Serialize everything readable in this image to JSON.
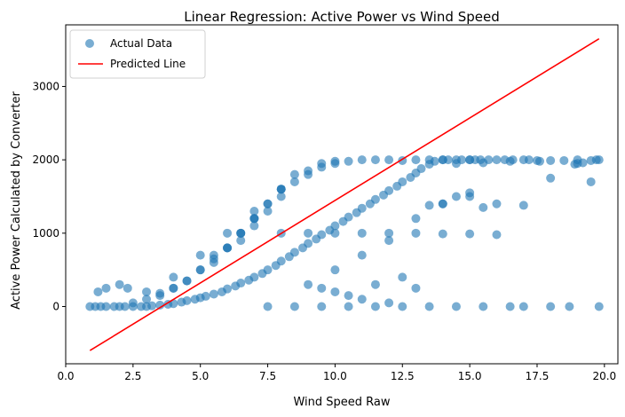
{
  "chart_data": {
    "type": "scatter",
    "title": "Linear Regression: Active Power vs Wind Speed",
    "xlabel": "Wind Speed Raw",
    "ylabel": "Active Power Calculated by Converter",
    "xlim": [
      0.0,
      20.5
    ],
    "ylim": [
      -780,
      3840
    ],
    "xticks": [
      0.0,
      2.5,
      5.0,
      7.5,
      10.0,
      12.5,
      15.0,
      17.5,
      20.0
    ],
    "xtick_labels": [
      "0.0",
      "2.5",
      "5.0",
      "7.5",
      "10.0",
      "12.5",
      "15.0",
      "17.5",
      "20.0"
    ],
    "yticks": [
      0,
      1000,
      2000,
      3000
    ],
    "ytick_labels": [
      "0",
      "1000",
      "2000",
      "3000"
    ],
    "grid": false,
    "legend_position": "top-left",
    "series": [
      {
        "name": "Actual Data",
        "kind": "scatter",
        "color": "#1f77b4",
        "alpha": 0.6,
        "x": [
          0.9,
          1.1,
          1.3,
          1.5,
          1.8,
          2.0,
          2.2,
          2.5,
          2.8,
          3.0,
          3.2,
          3.5,
          3.8,
          4.0,
          4.3,
          4.5,
          4.8,
          5.0,
          5.2,
          5.5,
          5.8,
          6.0,
          6.3,
          6.5,
          6.8,
          7.0,
          7.3,
          7.5,
          7.8,
          8.0,
          8.3,
          8.5,
          8.8,
          9.0,
          9.3,
          9.5,
          9.8,
          10.0,
          10.3,
          10.5,
          10.8,
          11.0,
          11.3,
          11.5,
          11.8,
          12.0,
          12.3,
          12.5,
          12.8,
          13.0,
          13.2,
          13.5,
          13.7,
          14.0,
          14.2,
          14.5,
          14.7,
          15.0,
          15.2,
          15.4,
          15.7,
          16.0,
          16.3,
          16.6,
          17.0,
          17.2,
          17.6,
          18.0,
          18.5,
          18.9,
          19.0,
          19.2,
          19.5,
          19.7,
          19.8,
          3.0,
          4.0,
          5.0,
          6.0,
          7.0,
          8.0,
          9.0,
          10.0,
          11.0,
          12.0,
          13.0,
          14.0,
          15.0,
          9.5,
          10.5,
          11.5,
          12.5,
          13.5,
          14.5,
          15.5,
          16.5,
          17.5,
          19.0,
          8.0,
          9.0,
          10.0,
          11.0,
          12.0,
          13.0,
          14.0,
          15.0,
          16.0,
          7.5,
          8.5,
          9.5,
          10.5,
          11.5,
          12.5,
          13.5,
          14.5,
          15.5,
          16.5,
          17.0,
          18.0,
          18.7,
          19.8,
          6.5,
          7.0,
          7.5,
          8.0,
          8.5,
          9.0,
          9.5,
          10.0,
          6.0,
          6.5,
          7.0,
          7.5,
          8.0,
          8.5,
          5.5,
          6.0,
          6.5,
          7.0,
          7.5,
          8.0,
          4.5,
          5.0,
          5.5,
          6.0,
          6.5,
          7.0,
          3.5,
          4.0,
          4.5,
          5.0,
          5.5,
          2.5,
          3.0,
          3.5,
          4.0,
          1.2,
          1.5,
          2.0,
          2.3,
          10.0,
          11.0,
          12.0,
          13.0,
          14.0,
          15.0,
          9.0,
          9.5,
          10.0,
          10.5,
          11.0,
          11.5,
          12.0,
          12.5,
          13.0,
          13.5,
          14.0,
          14.5,
          15.0,
          15.5,
          16.0,
          17.0,
          18.0,
          19.5
        ],
        "y": [
          0,
          0,
          0,
          0,
          0,
          0,
          0,
          0,
          0,
          0,
          10,
          20,
          30,
          40,
          60,
          80,
          100,
          120,
          140,
          170,
          200,
          240,
          280,
          320,
          360,
          400,
          450,
          500,
          560,
          620,
          680,
          740,
          800,
          860,
          920,
          980,
          1040,
          1100,
          1160,
          1220,
          1280,
          1340,
          1400,
          1460,
          1520,
          1580,
          1640,
          1700,
          1760,
          1820,
          1880,
          1940,
          1980,
          2000,
          2000,
          2000,
          2000,
          2000,
          2000,
          2000,
          2000,
          2000,
          2000,
          2000,
          2000,
          2000,
          1980,
          1990,
          1990,
          1940,
          1950,
          1960,
          1990,
          2000,
          2000,
          200,
          400,
          700,
          1000,
          1300,
          1600,
          1850,
          1950,
          2000,
          2000,
          2000,
          2000,
          2000,
          1950,
          1980,
          2000,
          1990,
          2000,
          1950,
          1960,
          1980,
          1990,
          2000,
          1000,
          1000,
          1000,
          1000,
          1000,
          1000,
          990,
          990,
          980,
          0,
          0,
          0,
          0,
          0,
          0,
          0,
          0,
          0,
          0,
          0,
          0,
          0,
          0,
          900,
          1100,
          1300,
          1500,
          1700,
          1800,
          1900,
          1980,
          800,
          1000,
          1200,
          1400,
          1600,
          1800,
          600,
          800,
          1000,
          1200,
          1400,
          1600,
          350,
          500,
          650,
          800,
          1000,
          1200,
          150,
          250,
          350,
          500,
          700,
          50,
          100,
          180,
          250,
          200,
          250,
          300,
          250,
          500,
          700,
          900,
          1200,
          1400,
          1500,
          300,
          250,
          200,
          150,
          100,
          300,
          50,
          400,
          250,
          1380,
          1400,
          1500,
          1550,
          1350,
          1400,
          1380,
          1750,
          1700
        ]
      },
      {
        "name": "Predicted Line",
        "kind": "line",
        "color": "#ff0000",
        "x": [
          0.9,
          19.8
        ],
        "y": [
          -600,
          3650
        ]
      }
    ]
  }
}
